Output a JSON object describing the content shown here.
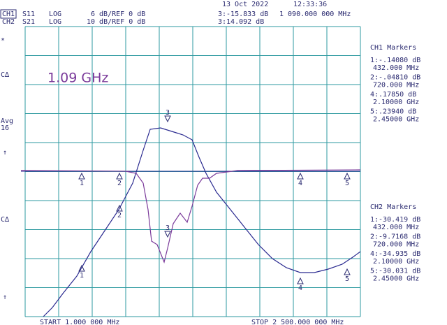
{
  "header": {
    "date": "13 Oct 2022",
    "time": "12:33:36",
    "channels": [
      {
        "name": "CH1",
        "param": "S11",
        "format": "LOG",
        "scale": "6 dB/REF 0 dB",
        "readout": "3:-15.833 dB",
        "frequency": "1 090.000 000 MHz"
      },
      {
        "name": "CH2",
        "param": "S21",
        "format": "LOG",
        "scale": "10 dB/REF 0 dB",
        "readout": "3:14.092 dB"
      }
    ]
  },
  "side_labels": [
    "*",
    "C∆",
    "Avg",
    "16",
    "↑",
    "C∆",
    "↑"
  ],
  "annotation": "1.09 GHz",
  "marker_tables": [
    {
      "title": "CH1 Markers",
      "entries": [
        {
          "value": "1:-.14080 dB",
          "freq": "432.000 MHz"
        },
        {
          "value": "2:-.04810 dB",
          "freq": "720.000 MHz"
        },
        {
          "value": "4:.17850 dB",
          "freq": "2.10000 GHz"
        },
        {
          "value": "5:.23940 dB",
          "freq": "2.45000 GHz"
        }
      ]
    },
    {
      "title": "CH2 Markers",
      "entries": [
        {
          "value": "1:-30.419 dB",
          "freq": "432.000 MHz"
        },
        {
          "value": "2:-9.7168 dB",
          "freq": "720.000 MHz"
        },
        {
          "value": "4:-34.935 dB",
          "freq": "2.10000 GHz"
        },
        {
          "value": "5:-30.031 dB",
          "freq": "2.45000 GHz"
        }
      ]
    }
  ],
  "trace_markers": [
    "1",
    "2",
    "3",
    "4",
    "5"
  ],
  "footer": {
    "start": "START  1.000 000 MHz",
    "stop": "STOP 2 500.000 000 MHz"
  }
}
